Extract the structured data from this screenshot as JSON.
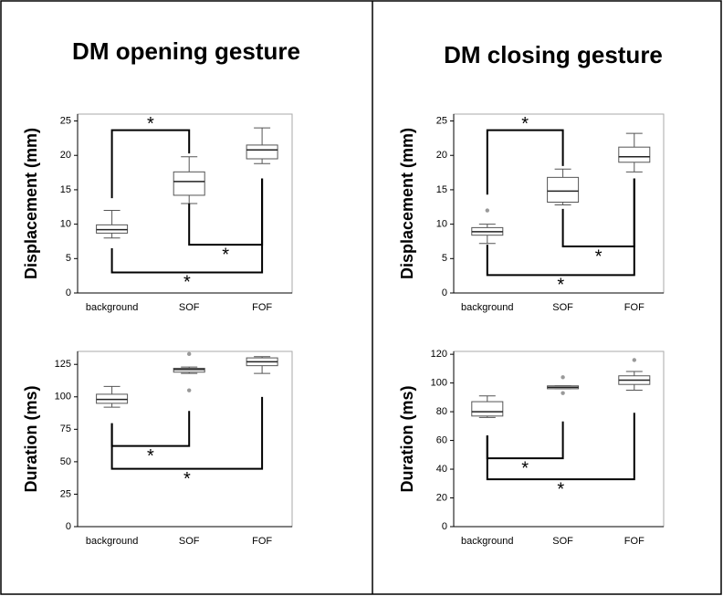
{
  "chart_data": [
    {
      "type": "box",
      "title": "DM opening gesture",
      "y_label": "Displacement (mm)",
      "categories": [
        "background",
        "SOF",
        "FOF"
      ],
      "boxes": [
        {
          "min": 8,
          "q1": 8.7,
          "median": 9.2,
          "q3": 9.9,
          "max": 12,
          "outliers": []
        },
        {
          "min": 13,
          "q1": 14.2,
          "median": 16.2,
          "q3": 17.6,
          "max": 19.8,
          "outliers": []
        },
        {
          "min": 18.8,
          "q1": 19.5,
          "median": 20.8,
          "q3": 21.5,
          "max": 24,
          "outliers": []
        }
      ],
      "ylim": [
        0,
        26
      ],
      "yticks": [
        0,
        5,
        10,
        15,
        20,
        25
      ],
      "annotations": [
        "*",
        "*",
        "*"
      ],
      "color": "#555555"
    },
    {
      "type": "box",
      "title": "DM closing gesture",
      "y_label": "Displacement (mm)",
      "categories": [
        "background",
        "SOF",
        "FOF"
      ],
      "boxes": [
        {
          "min": 7.2,
          "q1": 8.4,
          "median": 8.9,
          "q3": 9.5,
          "max": 10,
          "outliers": [
            12
          ]
        },
        {
          "min": 12.8,
          "q1": 13.2,
          "median": 14.8,
          "q3": 16.8,
          "max": 18,
          "outliers": []
        },
        {
          "min": 17.6,
          "q1": 19,
          "median": 19.8,
          "q3": 21.2,
          "max": 23.2,
          "outliers": []
        }
      ],
      "ylim": [
        0,
        26
      ],
      "yticks": [
        0,
        5,
        10,
        15,
        20,
        25
      ],
      "annotations": [
        "*",
        "*",
        "*"
      ],
      "color": "#555555"
    },
    {
      "type": "box",
      "y_label": "Duration (ms)",
      "categories": [
        "background",
        "SOF",
        "FOF"
      ],
      "boxes": [
        {
          "min": 92,
          "q1": 95,
          "median": 98,
          "q3": 102,
          "max": 108,
          "outliers": []
        },
        {
          "min": 118,
          "q1": 119,
          "median": 121,
          "q3": 122,
          "max": 123,
          "outliers": [
            133,
            105
          ]
        },
        {
          "min": 118,
          "q1": 124,
          "median": 127,
          "q3": 130,
          "max": 131,
          "outliers": []
        }
      ],
      "ylim": [
        0,
        135
      ],
      "yticks": [
        0,
        25,
        50,
        75,
        100,
        125
      ],
      "annotations": [
        "*",
        "*"
      ],
      "color": "#555555"
    },
    {
      "type": "box",
      "y_label": "Duration (ms)",
      "categories": [
        "background",
        "SOF",
        "FOF"
      ],
      "boxes": [
        {
          "min": 76,
          "q1": 77,
          "median": 80,
          "q3": 87,
          "max": 91,
          "outliers": []
        },
        {
          "min": 96,
          "q1": 96,
          "median": 97,
          "q3": 98,
          "max": 98,
          "outliers": [
            104,
            93
          ]
        },
        {
          "min": 95,
          "q1": 99,
          "median": 102,
          "q3": 105,
          "max": 108,
          "outliers": [
            116
          ]
        }
      ],
      "ylim": [
        0,
        122
      ],
      "yticks": [
        0,
        20,
        40,
        60,
        80,
        100,
        120
      ],
      "annotations": [
        "*",
        "*"
      ],
      "color": "#555555"
    }
  ]
}
